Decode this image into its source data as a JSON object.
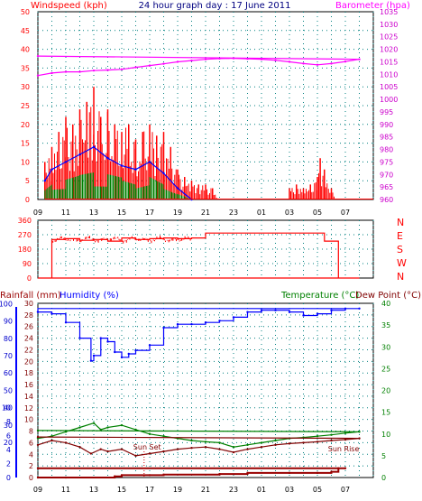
{
  "chart_data": [
    {
      "type": "line",
      "panel": "wind-barometer",
      "title": "24 hour graph day : 17 June 2011",
      "ylabel": "Windspeed (kph)",
      "y2label": "Barometer (hpa)",
      "ylim": [
        0,
        50
      ],
      "y2lim": [
        960,
        1035
      ],
      "yticks": [
        "0",
        "5",
        "10",
        "15",
        "20",
        "25",
        "30",
        "35",
        "40",
        "45",
        "50"
      ],
      "y2ticks": [
        "960",
        "965",
        "970",
        "975",
        "980",
        "985",
        "990",
        "995",
        "1000",
        "1005",
        "1010",
        "1015",
        "1020",
        "1025",
        "1030",
        "1035"
      ],
      "x_tick_labels": [
        "11",
        "13",
        "15",
        "17",
        "19",
        "21",
        "23",
        "01",
        "03",
        "05",
        "07",
        "09"
      ],
      "grid": true,
      "series": [
        {
          "name": "Windspeed (kph)",
          "color": "#ff0000",
          "x": [
            9.5,
            10,
            10.5,
            11,
            11.5,
            12,
            12.5,
            13,
            13.5,
            14,
            14.5,
            15,
            15.5,
            16,
            16.5,
            17,
            17.5,
            18,
            18.5,
            19,
            19.5,
            20,
            20.5,
            21,
            21.5,
            22,
            3,
            3.5,
            4,
            4.5,
            5,
            5.2,
            5.5,
            6,
            6.3
          ],
          "values": [
            10,
            14,
            18,
            22,
            20,
            24,
            26,
            30,
            22,
            24,
            20,
            18,
            20,
            16,
            18,
            20,
            17,
            18,
            14,
            8,
            6,
            5,
            4,
            4,
            3,
            0,
            3,
            4,
            3,
            4,
            6,
            11,
            8,
            3,
            0
          ]
        },
        {
          "name": "Wind gust blue",
          "color": "#0000ff",
          "x": [
            9.5,
            10,
            11,
            12,
            13,
            14,
            15,
            16,
            17,
            18,
            19,
            20
          ],
          "values": [
            5,
            8,
            10,
            12,
            14,
            11,
            9,
            8,
            10,
            7,
            3,
            0
          ]
        },
        {
          "name": "Wind avg green",
          "color": "#008000",
          "x": [
            9.5,
            10,
            11,
            12,
            13,
            14,
            15,
            16,
            17,
            18,
            19,
            20
          ],
          "values": [
            3,
            5,
            6,
            7,
            8,
            7,
            6,
            5,
            6,
            4,
            2,
            0
          ]
        },
        {
          "name": "Barometer (hpa)",
          "color": "#ff00ff",
          "x": [
            9,
            10,
            11,
            12,
            13,
            14,
            15,
            16,
            17,
            18,
            19,
            20,
            21,
            22,
            23,
            0,
            1,
            2,
            3,
            4,
            5,
            6,
            7,
            8,
            9
          ],
          "values": [
            1009.5,
            1010.5,
            1011,
            1011,
            1011.5,
            1011.7,
            1012,
            1012.8,
            1013.5,
            1014.2,
            1015,
            1015.5,
            1016,
            1016.3,
            1016.4,
            1016.2,
            1016,
            1015.6,
            1015,
            1014.3,
            1013.8,
            1014.3,
            1015.1,
            1016,
            1017.3
          ]
        }
      ]
    },
    {
      "type": "line",
      "panel": "wind-direction",
      "ylim": [
        0,
        360
      ],
      "yticks": [
        "0",
        "90",
        "180",
        "270",
        "360"
      ],
      "compass_labels": [
        "N",
        "W",
        "S",
        "E",
        "N"
      ],
      "grid": true,
      "series": [
        {
          "name": "Wind direction",
          "color": "#ff0000",
          "x": [
            9.5,
            10,
            11,
            12,
            13,
            14,
            15,
            16,
            17,
            18,
            19,
            20,
            21,
            22,
            23,
            0,
            1,
            2,
            3,
            4,
            5,
            5.5,
            6,
            6.5,
            7,
            8,
            9
          ],
          "values": [
            0,
            240,
            245,
            235,
            240,
            230,
            250,
            240,
            245,
            250,
            245,
            250,
            280,
            280,
            280,
            280,
            280,
            280,
            280,
            280,
            280,
            230,
            230,
            0,
            0,
            0,
            0
          ]
        }
      ]
    },
    {
      "type": "line",
      "panel": "temp-humidity-rain",
      "labels": {
        "rain": "Rainfall (mm)",
        "humidity": "Humidity (%)",
        "temperature": "Temperature (°C)",
        "dewpoint": "Dew Point (°C)"
      },
      "rain_ticks": [
        "0",
        "2",
        "4",
        "6",
        "8",
        "10"
      ],
      "humidity_ticks": [
        "20",
        "30",
        "40",
        "50",
        "60",
        "70",
        "80",
        "90",
        "100"
      ],
      "left_ticks": [
        "0",
        "2",
        "4",
        "6",
        "8",
        "10",
        "12",
        "14",
        "16",
        "18",
        "20",
        "22",
        "24",
        "26",
        "28",
        "30"
      ],
      "right_ticks": [
        "0",
        "5",
        "10",
        "15",
        "20",
        "25",
        "30",
        "35",
        "40"
      ],
      "annotations": {
        "sunset": "Sun Set",
        "sunrise": "Sun Rise"
      },
      "grid": true,
      "series": [
        {
          "name": "Humidity (%)",
          "color": "#0000ff",
          "x": [
            9,
            10,
            11,
            12,
            12.8,
            13,
            13.5,
            14,
            14.5,
            15,
            15.5,
            16,
            17,
            18,
            19,
            20,
            21,
            22,
            23,
            0,
            1,
            2,
            3,
            4,
            5,
            6,
            7,
            8,
            9
          ],
          "values": [
            95,
            94,
            89,
            80,
            67,
            70,
            80,
            78,
            72,
            69,
            71,
            73,
            76,
            86,
            88,
            88,
            89,
            90,
            92,
            95,
            96,
            96,
            95,
            93,
            94,
            96,
            97,
            97,
            95
          ]
        },
        {
          "name": "Temperature (°C)",
          "color": "#008000",
          "x": [
            9,
            10,
            11,
            12,
            13,
            13.5,
            14,
            15,
            16,
            17,
            18,
            19,
            20,
            21,
            22,
            23,
            0,
            1,
            2,
            3,
            4,
            5,
            6,
            7,
            8,
            9
          ],
          "values": [
            9,
            9.5,
            10.5,
            11.5,
            12.5,
            11,
            11.5,
            12,
            11,
            10,
            9.5,
            9,
            8.5,
            8.2,
            8,
            7,
            7.5,
            8,
            8.5,
            9,
            9.2,
            9.5,
            9.8,
            10.2,
            10.5,
            10.8
          ]
        },
        {
          "name": "Dew Point (°C)",
          "color": "#800000",
          "x": [
            9,
            10,
            11,
            12,
            12.8,
            13.5,
            14,
            15,
            16,
            17,
            18,
            19,
            20,
            21,
            22,
            23,
            0,
            1,
            2,
            3,
            4,
            5,
            6,
            7,
            8,
            9
          ],
          "values": [
            7.5,
            8.5,
            8,
            7,
            5.5,
            6.5,
            6,
            6.5,
            5,
            5.5,
            6,
            6.5,
            6.8,
            7,
            6.5,
            5.8,
            6.5,
            7,
            7.5,
            7.8,
            8,
            8.2,
            8.5,
            8.7,
            9,
            9.3
          ]
        },
        {
          "name": "Rainfall (mm)",
          "color": "#990000",
          "x": [
            9,
            11,
            14.5,
            15,
            17,
            18,
            22,
            0,
            3,
            5,
            6,
            6.5,
            7,
            9
          ],
          "values": [
            0,
            0,
            0.2,
            0.4,
            0.4,
            0.5,
            0.6,
            0.8,
            0.8,
            0.8,
            1,
            1.6,
            1.6,
            1.6
          ]
        }
      ]
    }
  ]
}
